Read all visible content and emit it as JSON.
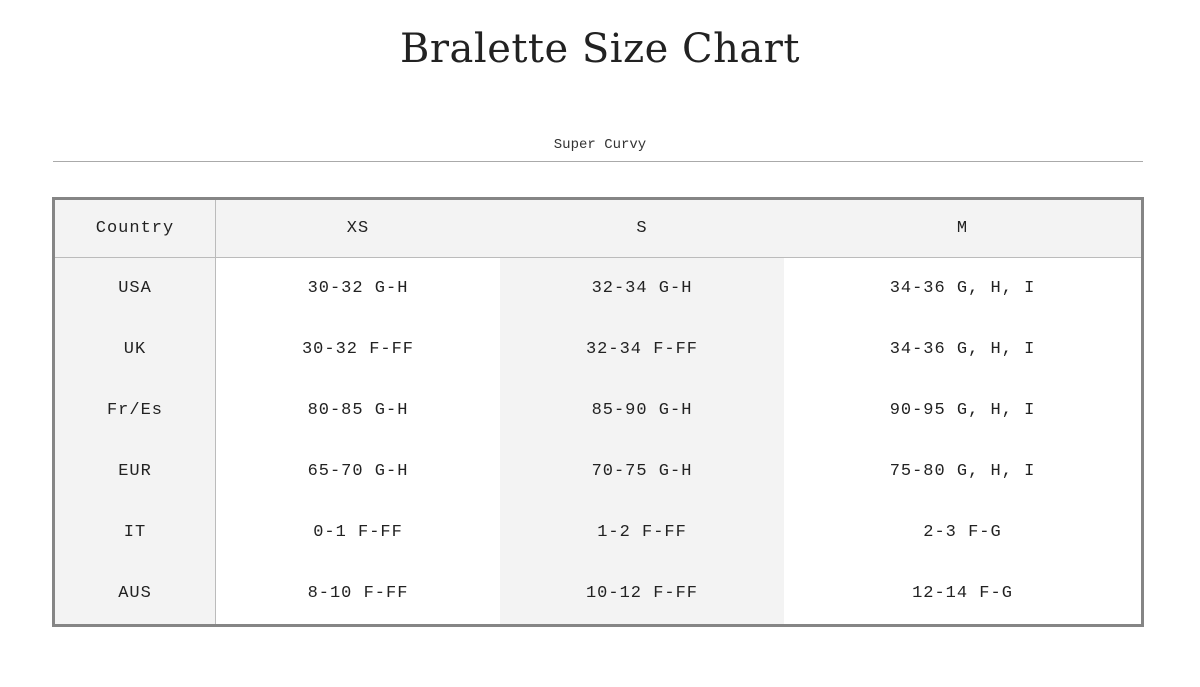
{
  "title": "Bralette Size Chart",
  "tab_label": "Super Curvy",
  "table": {
    "headers": [
      "Country",
      "XS",
      "S",
      "M"
    ],
    "rows": [
      [
        "USA",
        "30-32 G-H",
        "32-34 G-H",
        "34-36 G, H, I"
      ],
      [
        "UK",
        "30-32 F-FF",
        "32-34 F-FF",
        "34-36 G, H, I"
      ],
      [
        "Fr/Es",
        "80-85 G-H",
        "85-90 G-H",
        "90-95 G, H, I"
      ],
      [
        "EUR",
        "65-70 G-H",
        "70-75 G-H",
        "75-80 G, H, I"
      ],
      [
        "IT",
        "0-1 F-FF",
        "1-2 F-FF",
        "2-3 F-G"
      ],
      [
        "AUS",
        "8-10 F-FF",
        "10-12 F-FF",
        "12-14 F-G"
      ]
    ]
  }
}
